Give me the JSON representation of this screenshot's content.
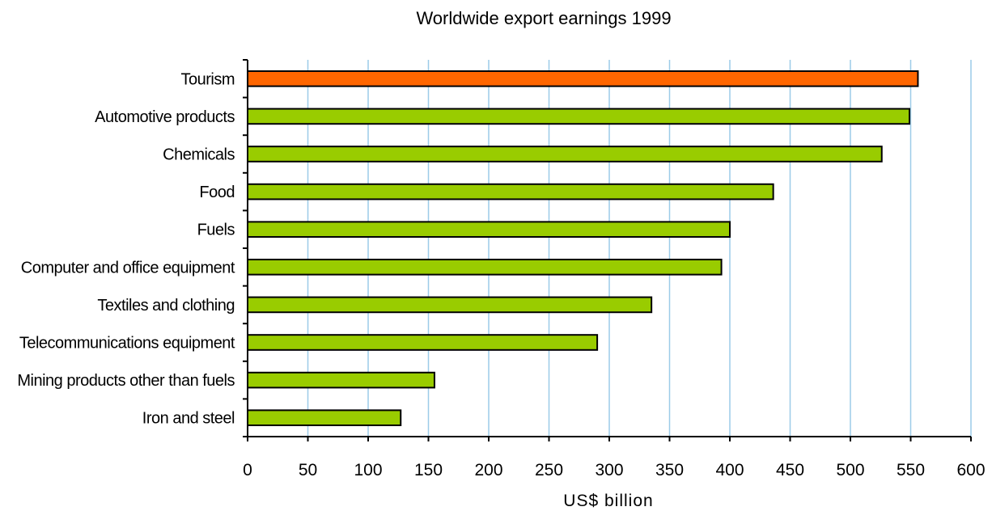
{
  "chart_data": {
    "type": "bar",
    "orientation": "horizontal",
    "title": "Worldwide export earnings 1999",
    "xlabel": "US$ billion",
    "ylabel": "",
    "xlim": [
      0,
      600
    ],
    "xticks": [
      0,
      50,
      100,
      150,
      200,
      250,
      300,
      350,
      400,
      450,
      500,
      550,
      600
    ],
    "grid": "vertical",
    "categories": [
      "Tourism",
      "Automotive products",
      "Chemicals",
      "Food",
      "Fuels",
      "Computer and office equipment",
      "Textiles and clothing",
      "Telecommunications equipment",
      "Mining products other than fuels",
      "Iron and steel"
    ],
    "values": [
      556,
      549,
      526,
      436,
      400,
      393,
      335,
      290,
      155,
      127
    ],
    "colors": [
      "#ff6600",
      "#99cc00",
      "#99cc00",
      "#99cc00",
      "#99cc00",
      "#99cc00",
      "#99cc00",
      "#99cc00",
      "#99cc00",
      "#99cc00"
    ],
    "gridline_color": "#9ccbe8"
  }
}
